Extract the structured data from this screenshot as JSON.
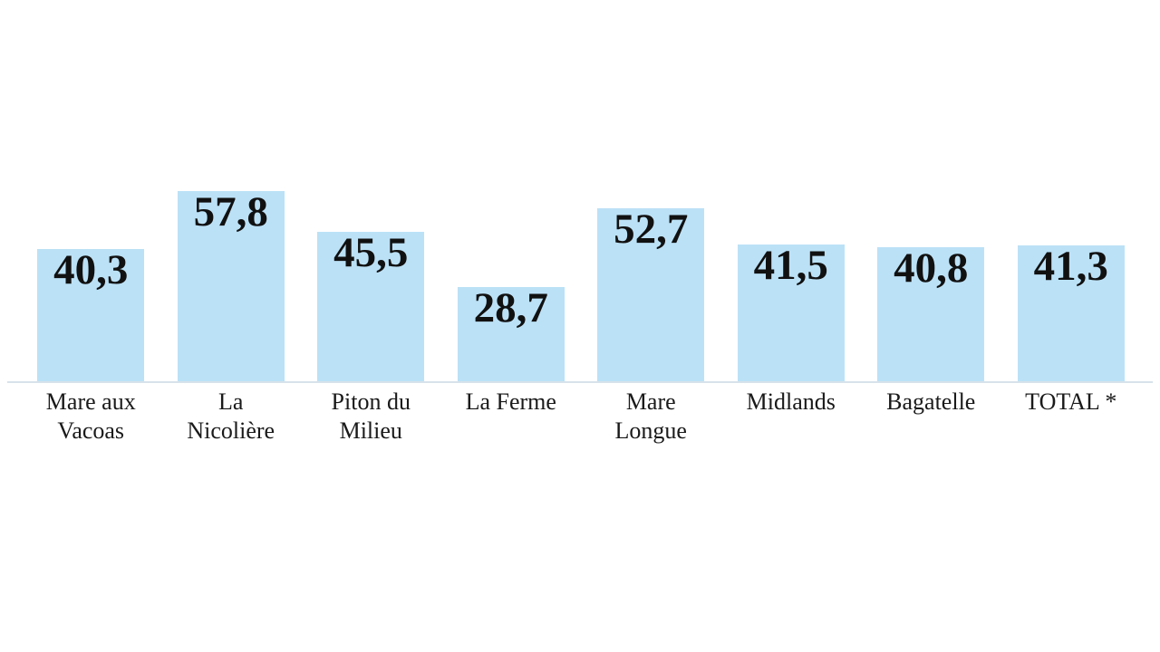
{
  "chart_data": {
    "type": "bar",
    "title": "",
    "xlabel": "",
    "ylabel": "",
    "ylim": [
      0,
      60
    ],
    "grid": false,
    "legend": false,
    "decimal_separator": ",",
    "categories": [
      "Mare aux Vacoas",
      "La Nicolière",
      "Piton du Milieu",
      "La Ferme",
      "Mare Longue",
      "Midlands",
      "Bagatelle",
      "TOTAL *"
    ],
    "values": [
      40.3,
      57.8,
      45.5,
      28.7,
      52.7,
      41.5,
      40.8,
      41.3
    ],
    "value_labels": [
      "40,3",
      "57,8",
      "45,5",
      "28,7",
      "52,7",
      "41,5",
      "40,8",
      "41,3"
    ],
    "bars": [
      {
        "label_line1": "Mare aux",
        "label_line2": "Vacoas",
        "value": 40.3,
        "value_label": "40,3"
      },
      {
        "label_line1": "La",
        "label_line2": "Nicolière",
        "value": 57.8,
        "value_label": "57,8"
      },
      {
        "label_line1": "Piton du",
        "label_line2": "Milieu",
        "value": 45.5,
        "value_label": "45,5"
      },
      {
        "label_line1": "La Ferme",
        "label_line2": "",
        "value": 28.7,
        "value_label": "28,7"
      },
      {
        "label_line1": "Mare",
        "label_line2": "Longue",
        "value": 52.7,
        "value_label": "52,7"
      },
      {
        "label_line1": "Midlands",
        "label_line2": "",
        "value": 41.5,
        "value_label": "41,5"
      },
      {
        "label_line1": "Bagatelle",
        "label_line2": "",
        "value": 40.8,
        "value_label": "40,8"
      },
      {
        "label_line1": "TOTAL *",
        "label_line2": "",
        "value": 41.3,
        "value_label": "41,3"
      }
    ],
    "colors": {
      "bar_fill": "#bbe1f6",
      "axis_line": "#d7e2ea",
      "value_text": "#111111",
      "label_text": "#1a1a1a",
      "background": "#ffffff"
    }
  }
}
